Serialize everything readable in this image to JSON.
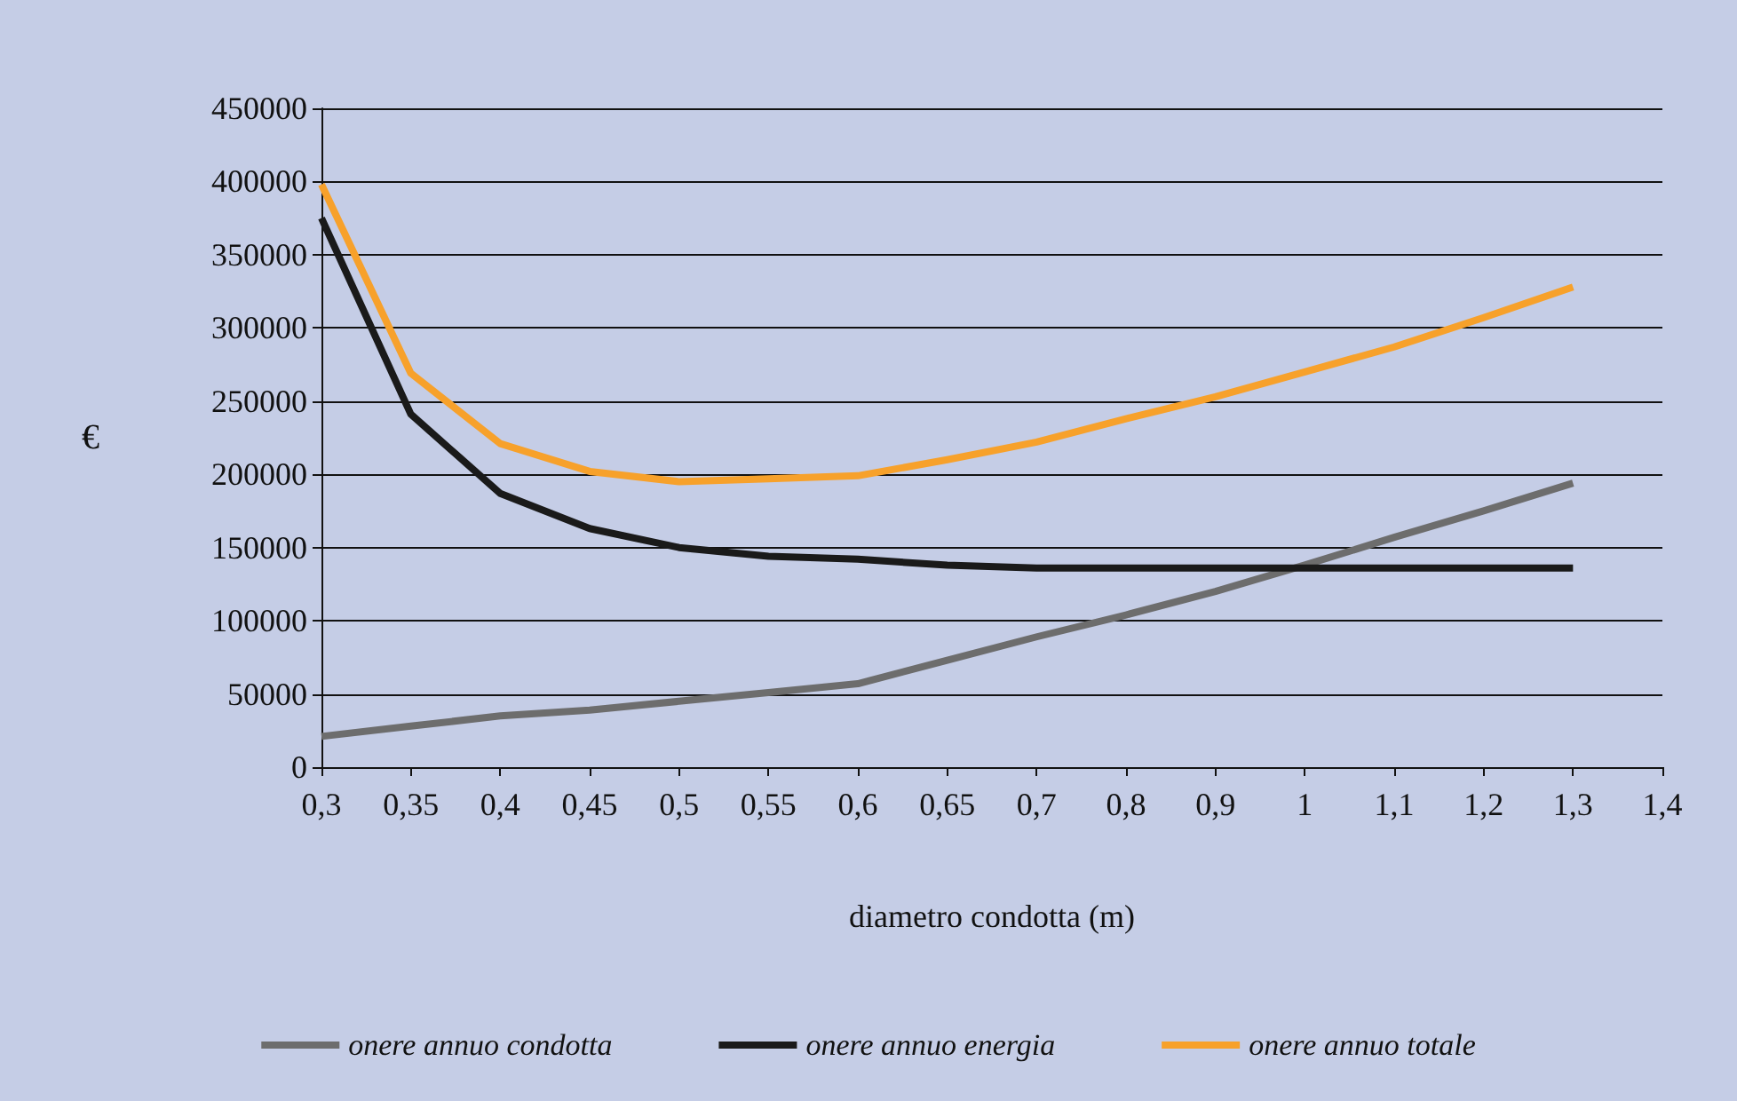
{
  "chart_data": {
    "type": "line",
    "xlabel": "diametro condotta (m)",
    "ylabel": "€",
    "categories": [
      "0,3",
      "0,35",
      "0,4",
      "0,45",
      "0,5",
      "0,55",
      "0,6",
      "0,65",
      "0,7",
      "0,8",
      "0,9",
      "1",
      "1,1",
      "1,2",
      "1,3",
      "1,4"
    ],
    "series": [
      {
        "name": "onere annuo condotta",
        "color": "#6d6d6d",
        "values": [
          21000,
          28000,
          35000,
          39000,
          45000,
          51000,
          57000,
          73000,
          89000,
          104000,
          120000,
          138000,
          157000,
          175000,
          194000,
          null
        ]
      },
      {
        "name": "onere annuo energia",
        "color": "#1a1a1a",
        "values": [
          375000,
          241000,
          187000,
          163000,
          150000,
          144000,
          142000,
          138000,
          136000,
          136000,
          136000,
          136000,
          136000,
          136000,
          136000,
          null
        ]
      },
      {
        "name": "onere annuo totale",
        "color": "#f7a12b",
        "values": [
          398000,
          269000,
          221000,
          202000,
          195000,
          197000,
          199000,
          210000,
          222000,
          238000,
          253000,
          270000,
          287000,
          307000,
          328000,
          null
        ]
      }
    ],
    "ylim": [
      0,
      450000
    ],
    "yticks": [
      0,
      50000,
      100000,
      150000,
      200000,
      250000,
      300000,
      350000,
      400000,
      450000
    ],
    "grid": "y",
    "legend": "bottom",
    "marker": "none",
    "line_style": "solid"
  }
}
